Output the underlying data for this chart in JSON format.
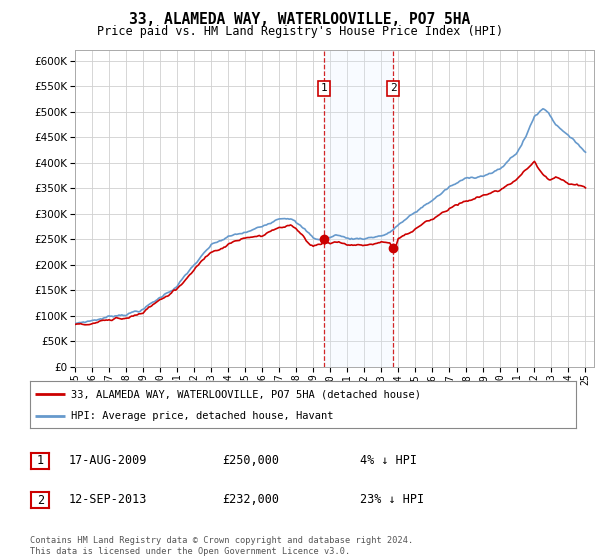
{
  "title": "33, ALAMEDA WAY, WATERLOOVILLE, PO7 5HA",
  "subtitle": "Price paid vs. HM Land Registry's House Price Index (HPI)",
  "ylim": [
    0,
    620000
  ],
  "ytick_vals": [
    0,
    50000,
    100000,
    150000,
    200000,
    250000,
    300000,
    350000,
    400000,
    450000,
    500000,
    550000,
    600000
  ],
  "hpi_color": "#6699cc",
  "price_color": "#cc0000",
  "sale1_date": 2009.625,
  "sale1_price": 250000,
  "sale2_date": 2013.708,
  "sale2_price": 232000,
  "legend_line1": "33, ALAMEDA WAY, WATERLOOVILLE, PO7 5HA (detached house)",
  "legend_line2": "HPI: Average price, detached house, Havant",
  "table_row1_date": "17-AUG-2009",
  "table_row1_price": "£250,000",
  "table_row1_hpi": "4% ↓ HPI",
  "table_row2_date": "12-SEP-2013",
  "table_row2_price": "£232,000",
  "table_row2_hpi": "23% ↓ HPI",
  "footer": "Contains HM Land Registry data © Crown copyright and database right 2024.\nThis data is licensed under the Open Government Licence v3.0.",
  "background_color": "#ffffff",
  "plot_bg_color": "#ffffff",
  "grid_color": "#d0d0d0",
  "shade_color": "#ddeeff"
}
